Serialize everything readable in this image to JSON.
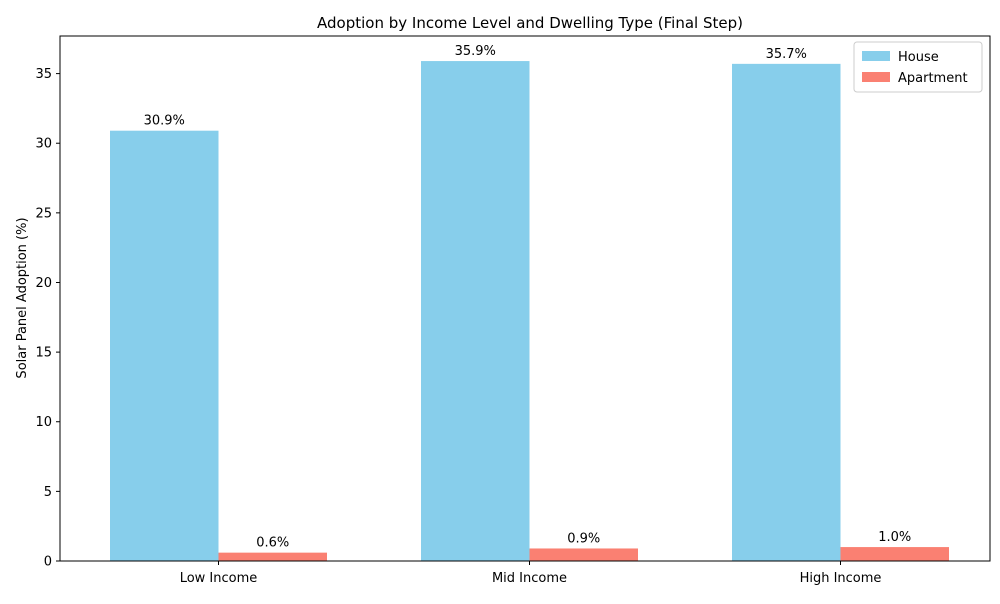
{
  "chart_data": {
    "type": "bar",
    "title": "Adoption by Income Level and Dwelling Type (Final Step)",
    "xlabel": "",
    "ylabel": "Solar Panel Adoption (%)",
    "categories": [
      "Low Income",
      "Mid Income",
      "High Income"
    ],
    "series": [
      {
        "name": "House",
        "values": [
          30.9,
          35.9,
          35.7
        ],
        "color": "#87CEEB",
        "labels": [
          "30.9%",
          "35.9%",
          "35.7%"
        ]
      },
      {
        "name": "Apartment",
        "values": [
          0.6,
          0.9,
          1.0
        ],
        "color": "#FA8072",
        "labels": [
          "0.6%",
          "0.9%",
          "1.0%"
        ]
      }
    ],
    "ylim": [
      0,
      37.7
    ],
    "yticks": [
      0,
      5,
      10,
      15,
      20,
      25,
      30,
      35
    ],
    "grid": false,
    "legend_position": "top-right"
  }
}
